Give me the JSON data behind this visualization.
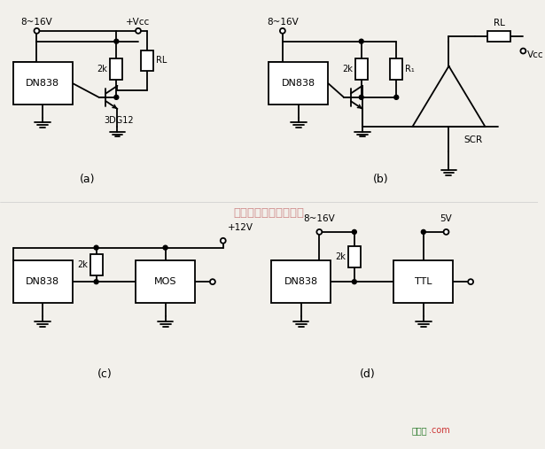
{
  "bg_color": "#f2f0eb",
  "line_color": "#000000",
  "watermark_text": "杭州将濬科技有限公司",
  "watermark_color": "#c87878",
  "footer_text1": "接线图",
  "footer_text2": ".com",
  "footer_color1": "#2a7a2a",
  "footer_color2": "#cc3333",
  "label_a": "(a)",
  "label_b": "(b)",
  "label_c": "(c)",
  "label_d": "(d)"
}
